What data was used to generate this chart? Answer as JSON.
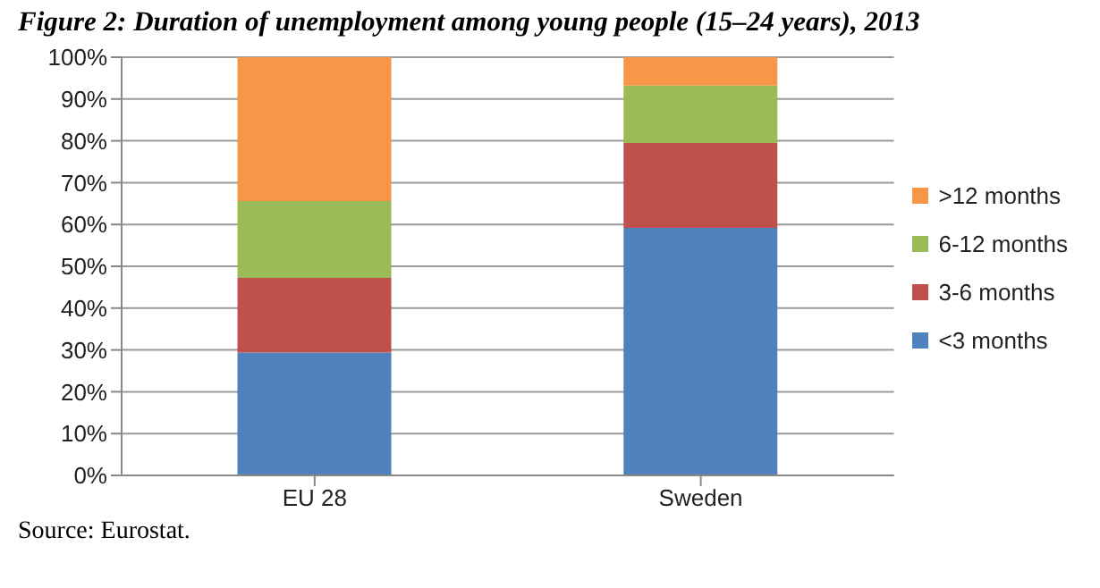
{
  "chart_data": {
    "type": "bar",
    "title": "Figure 2: Duration of unemployment among young people (15–24 years), 2013",
    "categories": [
      "EU 28",
      "Sweden"
    ],
    "stacked": true,
    "series": [
      {
        "name": "<3 months",
        "color": "#4f81bd",
        "values": [
          29.4,
          59.2
        ]
      },
      {
        "name": "3-6 months",
        "color": "#c0504d",
        "values": [
          17.8,
          20.3
        ]
      },
      {
        "name": "6-12 months",
        "color": "#9bbb59",
        "values": [
          18.4,
          13.7
        ]
      },
      {
        "name": ">12 months",
        "color": "#f79646",
        "values": [
          34.4,
          6.8
        ]
      }
    ],
    "ylim": [
      0,
      100
    ],
    "yticks": [
      {
        "value": 0,
        "label": "0%"
      },
      {
        "value": 10,
        "label": "10%"
      },
      {
        "value": 20,
        "label": "20%"
      },
      {
        "value": 30,
        "label": "30%"
      },
      {
        "value": 40,
        "label": "40%"
      },
      {
        "value": 50,
        "label": "50%"
      },
      {
        "value": 60,
        "label": "60%"
      },
      {
        "value": 70,
        "label": "70%"
      },
      {
        "value": 80,
        "label": "80%"
      },
      {
        "value": 90,
        "label": "90%"
      },
      {
        "value": 100,
        "label": "100%"
      }
    ],
    "grid": "y",
    "legend": "right",
    "annotations": [
      "Source: Eurostat."
    ]
  }
}
